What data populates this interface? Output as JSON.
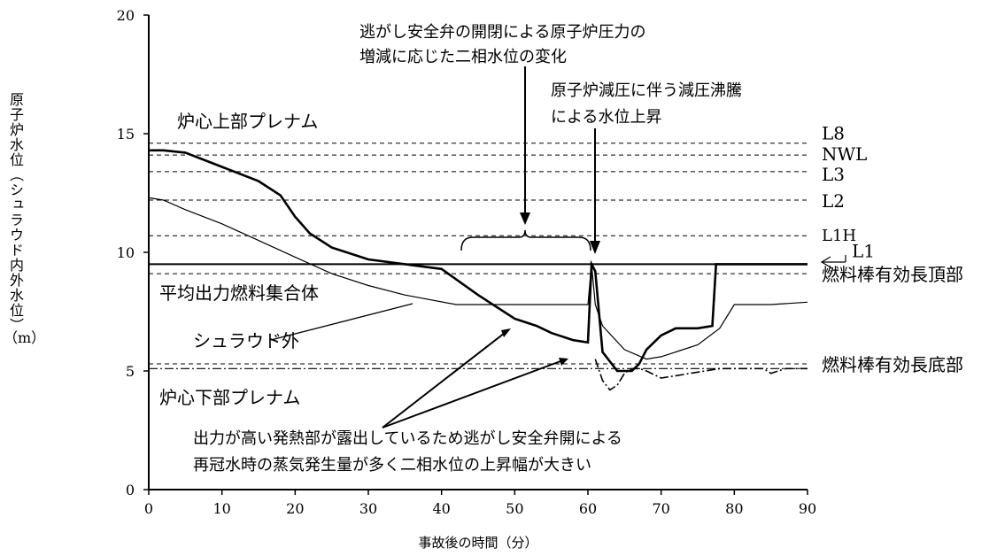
{
  "chart_data": {
    "type": "line",
    "ylabel": "原子炉水位（シュラウド内外水位）",
    "yunit": "（m）",
    "xlabel": "事故後の時間（分）",
    "xlim": [
      0,
      90
    ],
    "ylim": [
      0,
      20
    ],
    "xticks": [
      "0",
      "10",
      "20",
      "30",
      "40",
      "50",
      "60",
      "70",
      "80",
      "90"
    ],
    "yticks": [
      "0",
      "5",
      "10",
      "15",
      "20"
    ],
    "ref_levels": [
      {
        "label": "L8",
        "y": 14.6
      },
      {
        "label": "NWL",
        "y": 14.1
      },
      {
        "label": "L3",
        "y": 13.4
      },
      {
        "label": "L2",
        "y": 12.2
      },
      {
        "label": "L1H",
        "y": 10.7
      },
      {
        "label": "L1",
        "y": 9.5
      },
      {
        "label": "燃料棒有効長頂部",
        "y": 9.1
      },
      {
        "label": "燃料棒有効長底部",
        "y": 5.3
      }
    ],
    "regions": {
      "upper_plenum": "炉心上部プレナム",
      "lower_plenum": "炉心下部プレナム",
      "avg_assembly": "平均出力燃料集合体",
      "shroud_outside": "シュラウド外"
    },
    "annotations": {
      "srv_line1": "逃がし安全弁の開閉による原子炉圧力の",
      "srv_line2": "増減に応じた二相水位の変化",
      "depress_line1": "原子炉減圧に伴う減圧沸騰",
      "depress_line2": "による水位上昇",
      "hot_line1": "出力が高い発熱部が露出しているため逃がし安全弁開による",
      "hot_line2": "再冠水時の蒸気発生量が多く二相水位の上昇幅が大きい"
    },
    "series": [
      {
        "name": "",
        "x": [
          0,
          2,
          5,
          10,
          15,
          18,
          20,
          22,
          25,
          30,
          35,
          40,
          45,
          50,
          53,
          55,
          58,
          60,
          60.5,
          61,
          61.5,
          62,
          64,
          66,
          67,
          68,
          70,
          72,
          75,
          77,
          77.5,
          80,
          85,
          90
        ],
        "y": [
          14.3,
          14.3,
          14.2,
          13.6,
          13.0,
          12.4,
          11.5,
          10.8,
          10.2,
          9.7,
          9.5,
          9.3,
          8.2,
          7.2,
          6.9,
          6.6,
          6.3,
          6.2,
          9.5,
          9.2,
          7.5,
          5.8,
          5.0,
          5.0,
          5.3,
          5.9,
          6.5,
          6.8,
          6.8,
          6.9,
          9.5,
          9.5,
          9.5,
          9.5
        ]
      },
      {
        "name": "平均出力燃料集合体",
        "x": [
          0,
          2,
          5,
          10,
          15,
          20,
          25,
          30,
          35,
          42,
          45,
          50,
          55,
          60,
          60.5,
          61,
          62,
          65,
          68,
          70,
          75,
          78,
          80,
          85,
          90
        ],
        "y": [
          12.3,
          12.2,
          11.8,
          11.2,
          10.5,
          9.8,
          9.1,
          8.6,
          8.2,
          7.8,
          7.8,
          7.8,
          7.8,
          7.8,
          9.5,
          7.8,
          6.9,
          5.9,
          5.5,
          5.6,
          6.1,
          6.8,
          7.8,
          7.8,
          7.9
        ]
      },
      {
        "name": "シュラウド外",
        "x": [
          61,
          62,
          63,
          64,
          65,
          66,
          67,
          68,
          70,
          72,
          76,
          78,
          80,
          84,
          85,
          87,
          90
        ],
        "y": [
          5.5,
          4.6,
          4.2,
          4.4,
          4.9,
          5.1,
          5.1,
          5.0,
          4.7,
          4.8,
          5.0,
          5.1,
          5.1,
          5.1,
          4.9,
          5.1,
          5.1
        ]
      }
    ]
  }
}
